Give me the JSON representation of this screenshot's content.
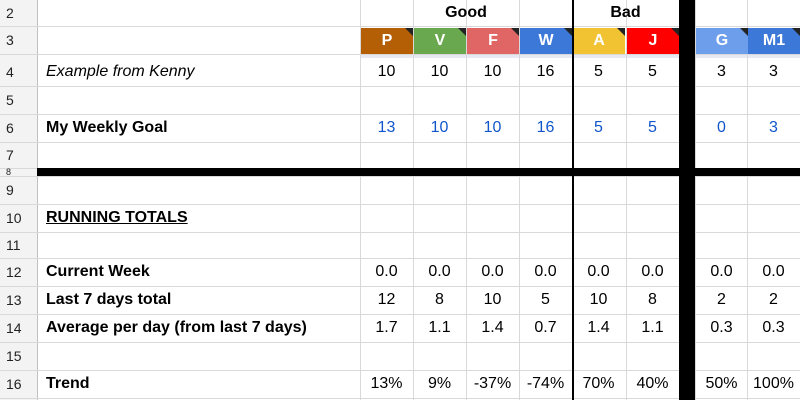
{
  "rows": [
    "2",
    "3",
    "4",
    "5",
    "6",
    "7",
    "8",
    "9",
    "10",
    "11",
    "12",
    "13",
    "14",
    "15",
    "16"
  ],
  "groups": {
    "good": "Good",
    "bad": "Bad"
  },
  "categories": [
    {
      "letter": "P",
      "color": "#b45f06"
    },
    {
      "letter": "V",
      "color": "#6aa84f"
    },
    {
      "letter": "F",
      "color": "#e06666"
    },
    {
      "letter": "W",
      "color": "#3c78d8"
    },
    {
      "letter": "A",
      "color": "#f1c232"
    },
    {
      "letter": "J",
      "color": "#ff0000"
    },
    {
      "letter": "G",
      "color": "#6d9eeb"
    },
    {
      "letter": "M1",
      "color": "#3c78d8"
    }
  ],
  "labels": {
    "example": "Example from Kenny",
    "goal": "My Weekly Goal",
    "running": "RUNNING TOTALS",
    "current": "Current Week",
    "last7": "Last 7 days total",
    "avg": "Average per day (from last 7 days)",
    "trend": "Trend"
  },
  "values": {
    "example": [
      "10",
      "10",
      "10",
      "16",
      "5",
      "5",
      "3",
      "3"
    ],
    "goal": [
      "13",
      "10",
      "10",
      "16",
      "5",
      "5",
      "0",
      "3"
    ],
    "current": [
      "0.0",
      "0.0",
      "0.0",
      "0.0",
      "0.0",
      "0.0",
      "0.0",
      "0.0"
    ],
    "last7": [
      "12",
      "8",
      "10",
      "5",
      "10",
      "8",
      "2",
      "2"
    ],
    "avg": [
      "1.7",
      "1.1",
      "1.4",
      "0.7",
      "1.4",
      "1.1",
      "0.3",
      "0.3"
    ],
    "trend": [
      "13%",
      "9%",
      "-37%",
      "-74%",
      "70%",
      "40%",
      "50%",
      "100%"
    ]
  }
}
